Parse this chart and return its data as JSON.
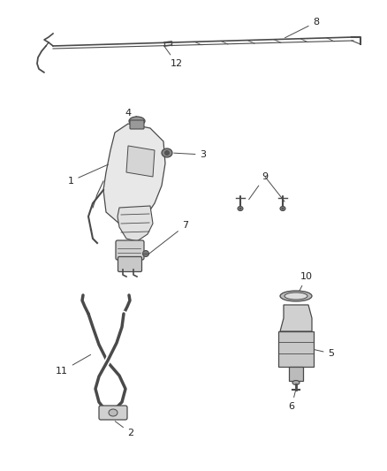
{
  "bg_color": "#ffffff",
  "line_color": "#4a4a4a",
  "label_color": "#222222",
  "fig_width": 4.38,
  "fig_height": 5.33,
  "dpi": 100
}
